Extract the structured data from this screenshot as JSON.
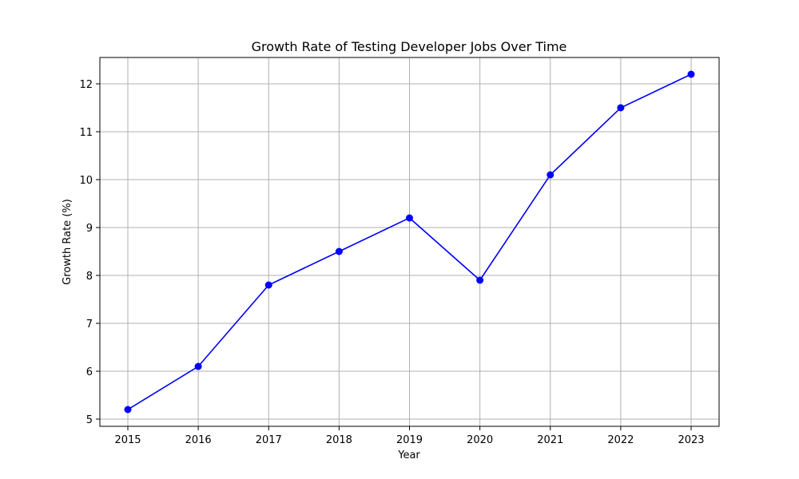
{
  "chart_data": {
    "type": "line",
    "title": "Growth Rate of Testing Developer Jobs Over Time",
    "xlabel": "Year",
    "ylabel": "Growth Rate (%)",
    "x": [
      "2015",
      "2016",
      "2017",
      "2018",
      "2019",
      "2020",
      "2021",
      "2022",
      "2023"
    ],
    "series": [
      {
        "values": [
          5.2,
          6.1,
          7.8,
          8.5,
          9.2,
          7.9,
          10.1,
          11.5,
          12.2
        ],
        "color": "#0000ff",
        "marker": "circle"
      }
    ],
    "yticks": [
      5,
      6,
      7,
      8,
      9,
      10,
      11,
      12
    ],
    "ylim": [
      4.85,
      12.55
    ],
    "grid": true,
    "legend": "none"
  }
}
